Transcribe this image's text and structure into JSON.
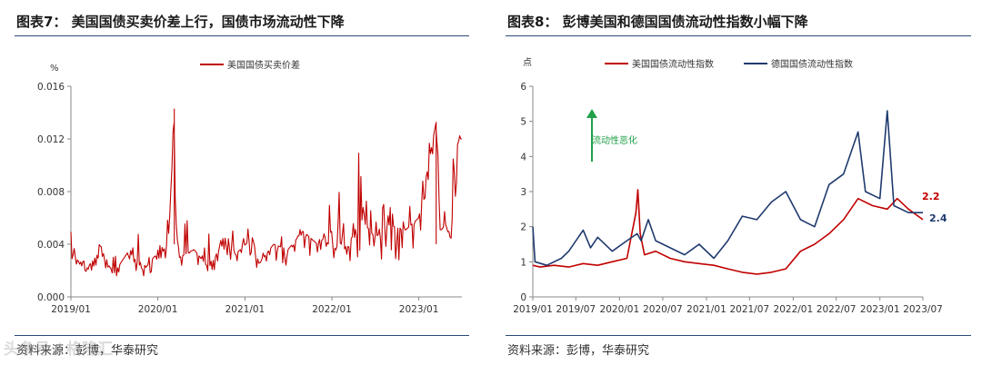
{
  "charts": {
    "left": {
      "title": "图表7：  美国国债买卖价差上行，国债市场流动性下降",
      "source": "资料来源：彭博，华泰研究",
      "unit_label": "%",
      "legend": [
        "美国国债买卖价差"
      ]
    },
    "right": {
      "title": "图表8：  彭博美国和德国国债流动性指数小幅下降",
      "source": "资料来源：彭博，华泰研究",
      "unit_label": "点",
      "legend": [
        "美国国债流动性指数",
        "德国国债流动性指数"
      ],
      "annotation": "流动性恶化",
      "end_labels": [
        "2.2",
        "2.4"
      ]
    }
  },
  "colors": {
    "red": "#c00000",
    "navy": "#1f3a6e",
    "green": "#22a04a",
    "rule": "#2b4a78"
  },
  "watermark": "头条号 / 格隆汇",
  "chart_data": [
    {
      "type": "line",
      "title": "",
      "ylabel": "%",
      "ylim": [
        0,
        0.016
      ],
      "yticks": [
        "0.000",
        "0.004",
        "0.008",
        "0.012",
        "0.016"
      ],
      "xticks": [
        "2019/01",
        "2020/01",
        "2021/01",
        "2022/01",
        "2023/01"
      ],
      "xrange": [
        "2019-01-01",
        "2023-07-01"
      ],
      "legend_position": "top-center",
      "series": [
        {
          "name": "美国国债买卖价差",
          "color": "#c00000",
          "points": [
            [
              "2019-01-01",
              0.0035
            ],
            [
              "2019-03-01",
              0.002
            ],
            [
              "2019-05-01",
              0.0034
            ],
            [
              "2019-07-01",
              0.0018
            ],
            [
              "2019-09-01",
              0.0035
            ],
            [
              "2019-11-01",
              0.002
            ],
            [
              "2020-01-01",
              0.0034
            ],
            [
              "2020-02-15",
              0.004
            ],
            [
              "2020-03-10",
              0.0143
            ],
            [
              "2020-03-15",
              0.006
            ],
            [
              "2020-04-01",
              0.003
            ],
            [
              "2020-06-01",
              0.0036
            ],
            [
              "2020-08-01",
              0.0022
            ],
            [
              "2020-10-01",
              0.004
            ],
            [
              "2020-12-01",
              0.0034
            ],
            [
              "2021-02-01",
              0.0045
            ],
            [
              "2021-03-01",
              0.0025
            ],
            [
              "2021-05-01",
              0.004
            ],
            [
              "2021-07-01",
              0.0036
            ],
            [
              "2021-09-01",
              0.005
            ],
            [
              "2021-11-01",
              0.004
            ],
            [
              "2022-01-01",
              0.005
            ],
            [
              "2022-03-01",
              0.0035
            ],
            [
              "2022-05-01",
              0.006
            ],
            [
              "2022-07-01",
              0.0045
            ],
            [
              "2022-09-01",
              0.0055
            ],
            [
              "2022-11-01",
              0.005
            ],
            [
              "2023-01-01",
              0.006
            ],
            [
              "2023-03-15",
              0.0133
            ],
            [
              "2023-04-01",
              0.005
            ],
            [
              "2023-05-15",
              0.006
            ],
            [
              "2023-06-15",
              0.012
            ]
          ]
        }
      ]
    },
    {
      "type": "line",
      "title": "",
      "ylabel": "点",
      "ylim": [
        0,
        6
      ],
      "yticks": [
        "0",
        "1",
        "2",
        "3",
        "4",
        "5",
        "6"
      ],
      "xticks": [
        "2019/01",
        "2019/07",
        "2020/01",
        "2020/07",
        "2021/01",
        "2021/07",
        "2022/01",
        "2022/07",
        "2023/01",
        "2023/07"
      ],
      "xrange": [
        "2019-01-01",
        "2023-07-01"
      ],
      "legend_position": "top-center",
      "series": [
        {
          "name": "美国国债流动性指数",
          "color": "#c00000",
          "points": [
            [
              "2019-01-01",
              0.9
            ],
            [
              "2019-02-01",
              0.85
            ],
            [
              "2019-04-01",
              0.9
            ],
            [
              "2019-06-01",
              0.85
            ],
            [
              "2019-08-01",
              0.95
            ],
            [
              "2019-10-01",
              0.9
            ],
            [
              "2019-12-01",
              1.0
            ],
            [
              "2020-02-01",
              1.1
            ],
            [
              "2020-03-10",
              2.4
            ],
            [
              "2020-03-18",
              3.05
            ],
            [
              "2020-03-28",
              1.8
            ],
            [
              "2020-04-15",
              1.2
            ],
            [
              "2020-06-01",
              1.3
            ],
            [
              "2020-08-01",
              1.1
            ],
            [
              "2020-10-01",
              1.0
            ],
            [
              "2020-12-01",
              0.95
            ],
            [
              "2021-02-01",
              0.9
            ],
            [
              "2021-04-01",
              0.8
            ],
            [
              "2021-06-01",
              0.7
            ],
            [
              "2021-08-01",
              0.65
            ],
            [
              "2021-10-01",
              0.7
            ],
            [
              "2021-12-01",
              0.8
            ],
            [
              "2022-02-01",
              1.3
            ],
            [
              "2022-04-01",
              1.5
            ],
            [
              "2022-06-01",
              1.8
            ],
            [
              "2022-08-01",
              2.2
            ],
            [
              "2022-10-01",
              2.8
            ],
            [
              "2022-12-01",
              2.6
            ],
            [
              "2023-02-01",
              2.5
            ],
            [
              "2023-03-15",
              2.8
            ],
            [
              "2023-05-01",
              2.5
            ],
            [
              "2023-07-01",
              2.2
            ]
          ]
        },
        {
          "name": "德国国债流动性指数",
          "color": "#1f3a6e",
          "points": [
            [
              "2019-01-01",
              2.0
            ],
            [
              "2019-01-10",
              1.0
            ],
            [
              "2019-03-01",
              0.9
            ],
            [
              "2019-05-01",
              1.1
            ],
            [
              "2019-06-01",
              1.3
            ],
            [
              "2019-08-01",
              1.9
            ],
            [
              "2019-09-01",
              1.4
            ],
            [
              "2019-10-01",
              1.7
            ],
            [
              "2019-12-01",
              1.3
            ],
            [
              "2020-02-01",
              1.6
            ],
            [
              "2020-03-15",
              1.8
            ],
            [
              "2020-04-01",
              1.6
            ],
            [
              "2020-05-01",
              2.2
            ],
            [
              "2020-06-01",
              1.6
            ],
            [
              "2020-08-01",
              1.4
            ],
            [
              "2020-10-01",
              1.2
            ],
            [
              "2020-12-01",
              1.5
            ],
            [
              "2021-02-01",
              1.1
            ],
            [
              "2021-04-01",
              1.6
            ],
            [
              "2021-06-01",
              2.3
            ],
            [
              "2021-08-01",
              2.2
            ],
            [
              "2021-10-01",
              2.7
            ],
            [
              "2021-12-01",
              3.0
            ],
            [
              "2022-02-01",
              2.2
            ],
            [
              "2022-04-01",
              2.0
            ],
            [
              "2022-06-01",
              3.2
            ],
            [
              "2022-08-01",
              3.5
            ],
            [
              "2022-10-01",
              4.7
            ],
            [
              "2022-11-01",
              3.0
            ],
            [
              "2023-01-01",
              2.8
            ],
            [
              "2023-02-01",
              5.3
            ],
            [
              "2023-03-01",
              2.6
            ],
            [
              "2023-05-01",
              2.4
            ],
            [
              "2023-07-01",
              2.4
            ]
          ]
        }
      ]
    }
  ]
}
